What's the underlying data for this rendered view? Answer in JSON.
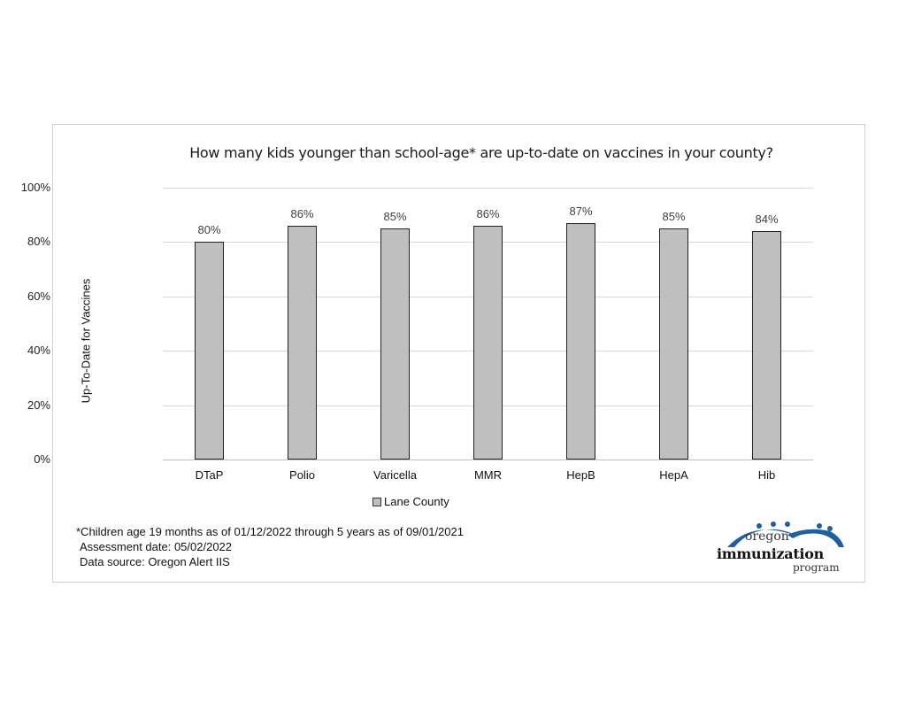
{
  "chart_data": {
    "type": "bar",
    "title": "How many kids younger than school-age* are up-to-date on vaccines in your county?",
    "xlabel": "",
    "ylabel": "Up-To-Date for Vaccines",
    "ylim": [
      0,
      100
    ],
    "yticks": [
      "0%",
      "20%",
      "40%",
      "60%",
      "80%",
      "100%"
    ],
    "grid": true,
    "legend_position": "bottom",
    "categories": [
      "DTaP",
      "Polio",
      "Varicella",
      "MMR",
      "HepB",
      "HepA",
      "Hib"
    ],
    "series": [
      {
        "name": "Lane County",
        "color": "#bfbfbf",
        "values": [
          80,
          86,
          85,
          86,
          87,
          85,
          84
        ],
        "labels": [
          "80%",
          "86%",
          "85%",
          "86%",
          "87%",
          "85%",
          "84%"
        ]
      }
    ]
  },
  "footnote": {
    "line1": "*Children age 19 months as of 01/12/2022 through 5 years as of 09/01/2021",
    "line2": "Assessment date: 05/02/2022",
    "line3": "Data source: Oregon Alert IIS"
  },
  "logo": {
    "line1": "oregon",
    "line2": "immunization",
    "line3": "program",
    "color": "#1f5f9f"
  }
}
